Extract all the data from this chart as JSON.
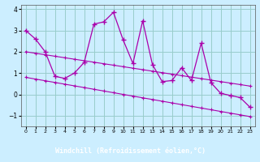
{
  "xlabel": "Windchill (Refroidissement éolien,°C)",
  "x": [
    0,
    1,
    2,
    3,
    4,
    5,
    6,
    7,
    8,
    9,
    10,
    11,
    12,
    13,
    14,
    15,
    16,
    17,
    18,
    19,
    20,
    21,
    22,
    23
  ],
  "y_main": [
    3.0,
    2.6,
    2.0,
    0.85,
    0.75,
    1.0,
    1.5,
    3.3,
    3.4,
    3.85,
    2.55,
    1.45,
    3.45,
    1.4,
    0.6,
    0.65,
    1.25,
    0.65,
    2.4,
    0.55,
    0.05,
    -0.05,
    -0.15,
    -0.6
  ],
  "y_trend1": [
    2.0,
    1.93,
    1.86,
    1.79,
    1.72,
    1.65,
    1.58,
    1.51,
    1.44,
    1.37,
    1.3,
    1.23,
    1.16,
    1.09,
    1.02,
    0.95,
    0.88,
    0.81,
    0.74,
    0.67,
    0.6,
    0.53,
    0.46,
    0.39
  ],
  "y_trend2": [
    0.8,
    0.72,
    0.64,
    0.56,
    0.48,
    0.4,
    0.32,
    0.24,
    0.16,
    0.08,
    0.0,
    -0.08,
    -0.16,
    -0.24,
    -0.32,
    -0.4,
    -0.48,
    -0.56,
    -0.64,
    -0.72,
    -0.8,
    -0.88,
    -0.96,
    -1.04
  ],
  "line_color": "#aa00aa",
  "bg_color": "#cceeff",
  "label_bg": "#330066",
  "label_fg": "#ffffff",
  "grid_color": "#99cccc",
  "ylim": [
    -1.5,
    4.2
  ],
  "xlim": [
    -0.5,
    23.5
  ],
  "yticks": [
    -1,
    0,
    1,
    2,
    3,
    4
  ],
  "xticks": [
    0,
    1,
    2,
    3,
    4,
    5,
    6,
    7,
    8,
    9,
    10,
    11,
    12,
    13,
    14,
    15,
    16,
    17,
    18,
    19,
    20,
    21,
    22,
    23
  ]
}
